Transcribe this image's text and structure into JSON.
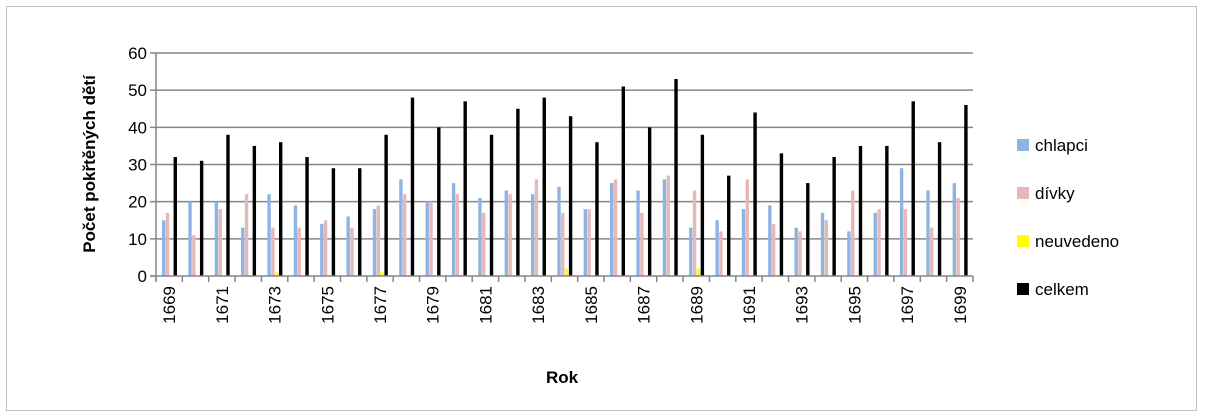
{
  "chart_data": {
    "type": "bar",
    "xlabel": "Rok",
    "ylabel": "Počet pokřtěných dětí",
    "ylim": [
      0,
      60
    ],
    "yticks": [
      0,
      10,
      20,
      30,
      40,
      50,
      60
    ],
    "grid": true,
    "legend_position": "right",
    "categories": [
      "1669",
      "1670",
      "1671",
      "1672",
      "1673",
      "1674",
      "1675",
      "1676",
      "1677",
      "1678",
      "1679",
      "1680",
      "1681",
      "1682",
      "1683",
      "1684",
      "1685",
      "1686",
      "1687",
      "1688",
      "1689",
      "1690",
      "1691",
      "1692",
      "1693",
      "1694",
      "1695",
      "1696",
      "1697",
      "1698",
      "1699"
    ],
    "tick_labels": [
      "1669",
      "",
      "1671",
      "",
      "1673",
      "",
      "1675",
      "",
      "1677",
      "",
      "1679",
      "",
      "1681",
      "",
      "1683",
      "",
      "1685",
      "",
      "1687",
      "",
      "1689",
      "",
      "1691",
      "",
      "1693",
      "",
      "1695",
      "",
      "1697",
      "",
      "1699"
    ],
    "series": [
      {
        "name": "chlapci",
        "color": "#8eb4e3",
        "values": [
          15,
          20,
          20,
          13,
          22,
          19,
          14,
          16,
          18,
          26,
          20,
          25,
          21,
          23,
          22,
          24,
          18,
          25,
          23,
          26,
          13,
          15,
          18,
          19,
          13,
          17,
          12,
          17,
          29,
          23,
          25
        ]
      },
      {
        "name": "dívky",
        "color": "#e6b9b8",
        "values": [
          17,
          11,
          18,
          22,
          13,
          13,
          15,
          13,
          19,
          22,
          20,
          22,
          17,
          22,
          26,
          17,
          18,
          26,
          17,
          27,
          23,
          12,
          26,
          14,
          12,
          15,
          23,
          18,
          18,
          13,
          21
        ]
      },
      {
        "name": "neuvedeno",
        "color": "#ffff00",
        "values": [
          0,
          0,
          0,
          0,
          1,
          0,
          0,
          0,
          1,
          0,
          0,
          0,
          0,
          0,
          0,
          2,
          0,
          0,
          0,
          0,
          2,
          0,
          0,
          0,
          0,
          0,
          0,
          0,
          0,
          0,
          0
        ]
      },
      {
        "name": "celkem",
        "color": "#000000",
        "values": [
          32,
          31,
          38,
          35,
          36,
          32,
          29,
          29,
          38,
          48,
          40,
          47,
          38,
          45,
          48,
          43,
          36,
          51,
          40,
          53,
          38,
          27,
          44,
          33,
          25,
          32,
          35,
          35,
          47,
          36,
          46
        ]
      }
    ]
  }
}
